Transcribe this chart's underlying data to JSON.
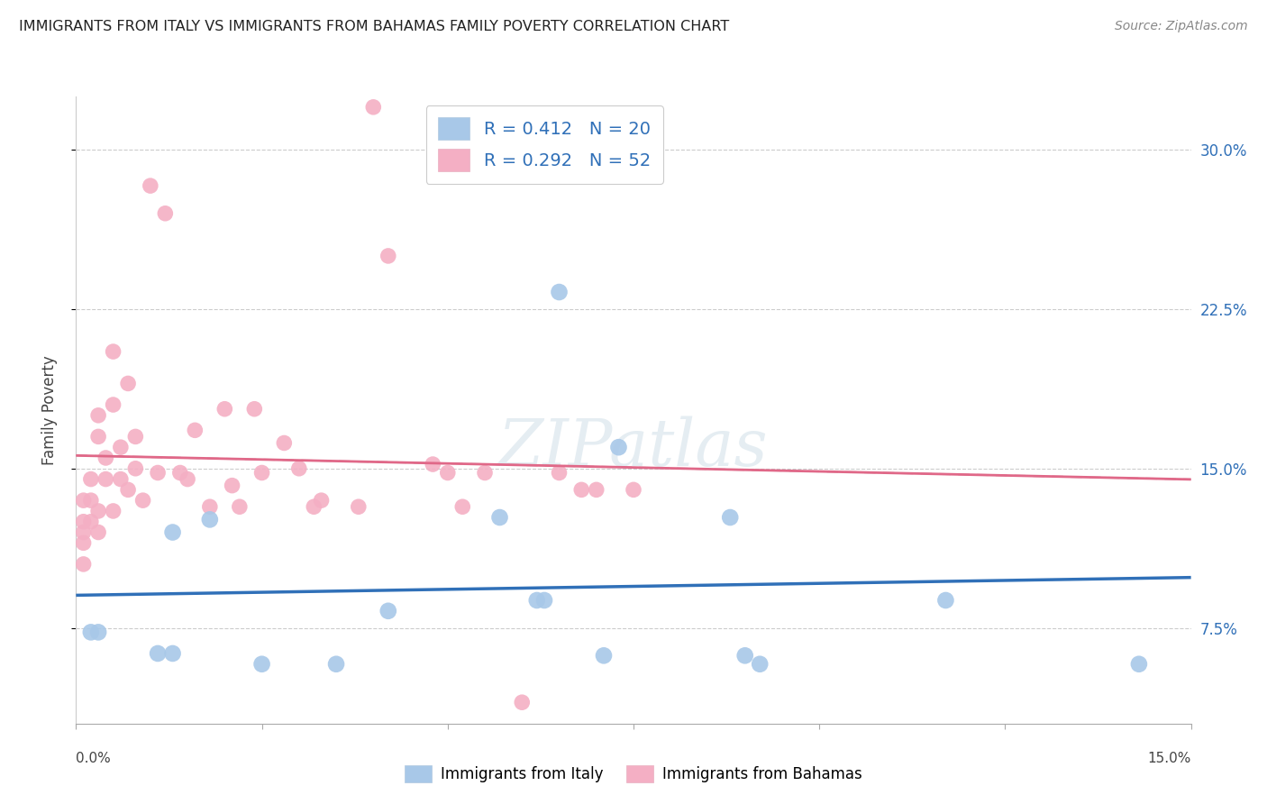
{
  "title": "IMMIGRANTS FROM ITALY VS IMMIGRANTS FROM BAHAMAS FAMILY POVERTY CORRELATION CHART",
  "source": "Source: ZipAtlas.com",
  "ylabel": "Family Poverty",
  "ylabel_right_ticks": [
    "7.5%",
    "15.0%",
    "22.5%",
    "30.0%"
  ],
  "ylabel_right_vals": [
    0.075,
    0.15,
    0.225,
    0.3
  ],
  "xlim": [
    0.0,
    0.15
  ],
  "ylim": [
    0.03,
    0.325
  ],
  "legend_italy_r": "0.412",
  "legend_italy_n": "20",
  "legend_bahamas_r": "0.292",
  "legend_bahamas_n": "52",
  "italy_color": "#a8c8e8",
  "bahamas_color": "#f4afc4",
  "italy_line_color": "#3070b8",
  "bahamas_line_color": "#e06888",
  "bahamas_dash_color": "#d8a8b8",
  "italy_x": [
    0.002,
    0.003,
    0.011,
    0.013,
    0.013,
    0.018,
    0.025,
    0.035,
    0.042,
    0.057,
    0.062,
    0.063,
    0.065,
    0.071,
    0.073,
    0.088,
    0.09,
    0.092,
    0.117,
    0.143
  ],
  "italy_y": [
    0.073,
    0.073,
    0.063,
    0.063,
    0.12,
    0.126,
    0.058,
    0.058,
    0.083,
    0.127,
    0.088,
    0.088,
    0.233,
    0.062,
    0.16,
    0.127,
    0.062,
    0.058,
    0.088,
    0.058
  ],
  "bahamas_x": [
    0.001,
    0.001,
    0.001,
    0.001,
    0.001,
    0.002,
    0.002,
    0.002,
    0.003,
    0.003,
    0.003,
    0.003,
    0.004,
    0.004,
    0.005,
    0.005,
    0.005,
    0.006,
    0.006,
    0.007,
    0.007,
    0.008,
    0.008,
    0.009,
    0.01,
    0.011,
    0.012,
    0.014,
    0.015,
    0.016,
    0.018,
    0.02,
    0.021,
    0.022,
    0.024,
    0.025,
    0.028,
    0.03,
    0.032,
    0.033,
    0.038,
    0.04,
    0.042,
    0.048,
    0.05,
    0.052,
    0.055,
    0.06,
    0.065,
    0.068,
    0.07,
    0.075
  ],
  "bahamas_y": [
    0.135,
    0.125,
    0.12,
    0.115,
    0.105,
    0.145,
    0.135,
    0.125,
    0.175,
    0.165,
    0.13,
    0.12,
    0.155,
    0.145,
    0.205,
    0.18,
    0.13,
    0.16,
    0.145,
    0.19,
    0.14,
    0.165,
    0.15,
    0.135,
    0.283,
    0.148,
    0.27,
    0.148,
    0.145,
    0.168,
    0.132,
    0.178,
    0.142,
    0.132,
    0.178,
    0.148,
    0.162,
    0.15,
    0.132,
    0.135,
    0.132,
    0.32,
    0.25,
    0.152,
    0.148,
    0.132,
    0.148,
    0.04,
    0.148,
    0.14,
    0.14,
    0.14
  ]
}
